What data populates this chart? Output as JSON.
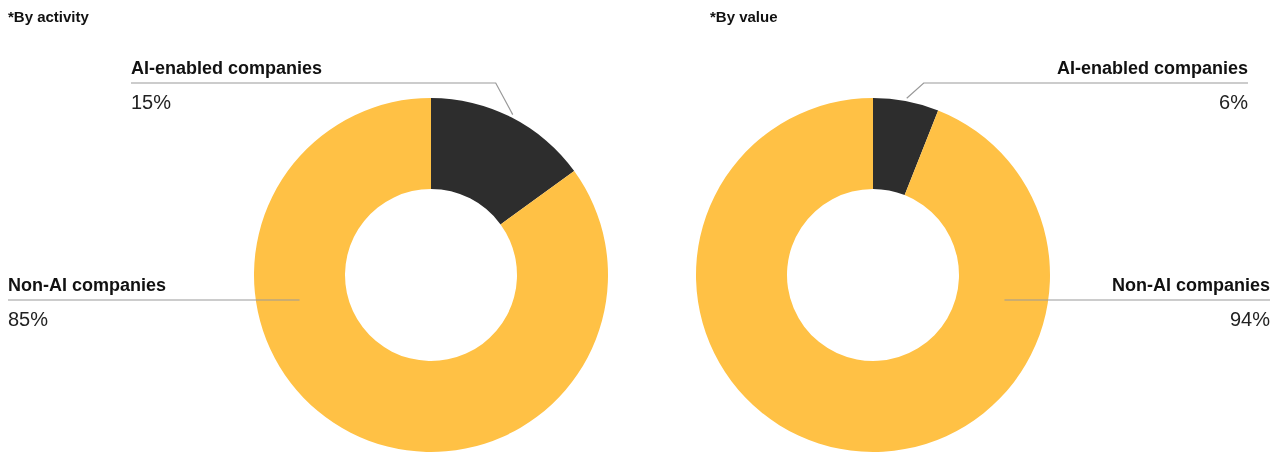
{
  "chart_data": [
    {
      "type": "donut",
      "title": "*By activity",
      "categories": [
        "AI-enabled companies",
        "Non-AI companies"
      ],
      "values": [
        15,
        85
      ],
      "colors": [
        "#2d2d2d",
        "#ffc145"
      ],
      "value_labels": [
        "15%",
        "85%"
      ]
    },
    {
      "type": "donut",
      "title": "*By value",
      "categories": [
        "AI-enabled companies",
        "Non-AI companies"
      ],
      "values": [
        6,
        94
      ],
      "colors": [
        "#2d2d2d",
        "#ffc145"
      ],
      "value_labels": [
        "6%",
        "94%"
      ]
    }
  ]
}
